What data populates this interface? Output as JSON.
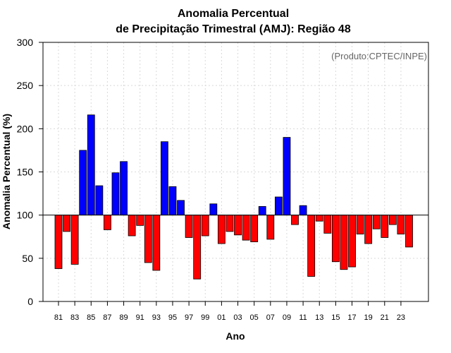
{
  "chart_data": {
    "type": "bar",
    "title_line1": "Anomalia Percentual",
    "title_line2": "de Precipitação Trimestral (AMJ): Região 48",
    "xlabel": "Ano",
    "ylabel": "Anomalia Percentual (%)",
    "source": "(Produto:CPTEC/INPE)",
    "baseline": 100,
    "ylim": [
      0,
      300
    ],
    "yticks": [
      0,
      50,
      100,
      150,
      200,
      250,
      300
    ],
    "grid": true,
    "colors": {
      "above": "#0000ff",
      "below": "#ff0000",
      "outline": "#000000",
      "grid": "#d9d9d9"
    },
    "categories": [
      "81",
      "82",
      "83",
      "84",
      "85",
      "86",
      "87",
      "88",
      "89",
      "90",
      "91",
      "92",
      "93",
      "94",
      "95",
      "96",
      "97",
      "98",
      "99",
      "00",
      "01",
      "02",
      "03",
      "04",
      "05",
      "06",
      "07",
      "08",
      "09",
      "10",
      "11",
      "12",
      "13",
      "14",
      "15",
      "16",
      "17",
      "18",
      "19",
      "20",
      "21",
      "22",
      "23",
      "24"
    ],
    "xtick_labels": [
      "81",
      "83",
      "85",
      "87",
      "89",
      "91",
      "93",
      "95",
      "97",
      "99",
      "01",
      "03",
      "05",
      "07",
      "09",
      "11",
      "13",
      "15",
      "17",
      "19",
      "21",
      "23"
    ],
    "values": [
      38,
      81,
      43,
      175,
      216,
      134,
      83,
      149,
      162,
      76,
      88,
      45,
      36,
      185,
      133,
      117,
      74,
      26,
      76,
      113,
      67,
      81,
      77,
      71,
      69,
      110,
      72,
      121,
      190,
      89,
      111,
      29,
      93,
      79,
      46,
      37,
      40,
      78,
      67,
      84,
      74,
      89,
      78,
      63
    ]
  }
}
